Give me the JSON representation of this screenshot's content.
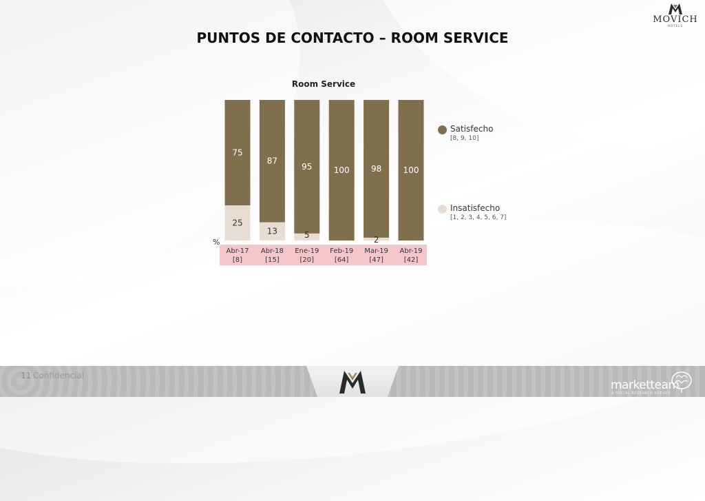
{
  "page": {
    "title": "PUNTOS DE CONTACTO – ROOM SERVICE",
    "page_number": "11",
    "confidential": "Confidencial"
  },
  "logo": {
    "name": "MOVICH",
    "sub": "HOTELS"
  },
  "footer_brand": {
    "name": "marketteam",
    "sub": "A SOCIAL RESEARCH AGENCY"
  },
  "colors": {
    "satisfecho": "#7f6f4d",
    "insatisfecho": "#e7ddd2",
    "axis_band": "#f5c7cb",
    "footer": "#b9b9bb"
  },
  "chart_data": {
    "type": "bar",
    "stacked": true,
    "title": "Room Service",
    "unit": "%",
    "categories": [
      "Abr-17",
      "Abr-18",
      "Ene-19",
      "Feb-19",
      "Mar-19",
      "Abr-19"
    ],
    "base_sizes": [
      "[8]",
      "[15]",
      "[20]",
      "[64]",
      "[47]",
      "[42]"
    ],
    "series": [
      {
        "name": "Insatisfecho",
        "codes": "[1, 2, 3, 4, 5, 6, 7]",
        "values": [
          25,
          13,
          5,
          null,
          2,
          null
        ]
      },
      {
        "name": "Satisfecho",
        "codes": "[8, 9, 10]",
        "values": [
          75,
          87,
          95,
          100,
          98,
          100
        ]
      }
    ],
    "ylim": [
      0,
      100
    ],
    "grid": false,
    "legend": "right"
  }
}
